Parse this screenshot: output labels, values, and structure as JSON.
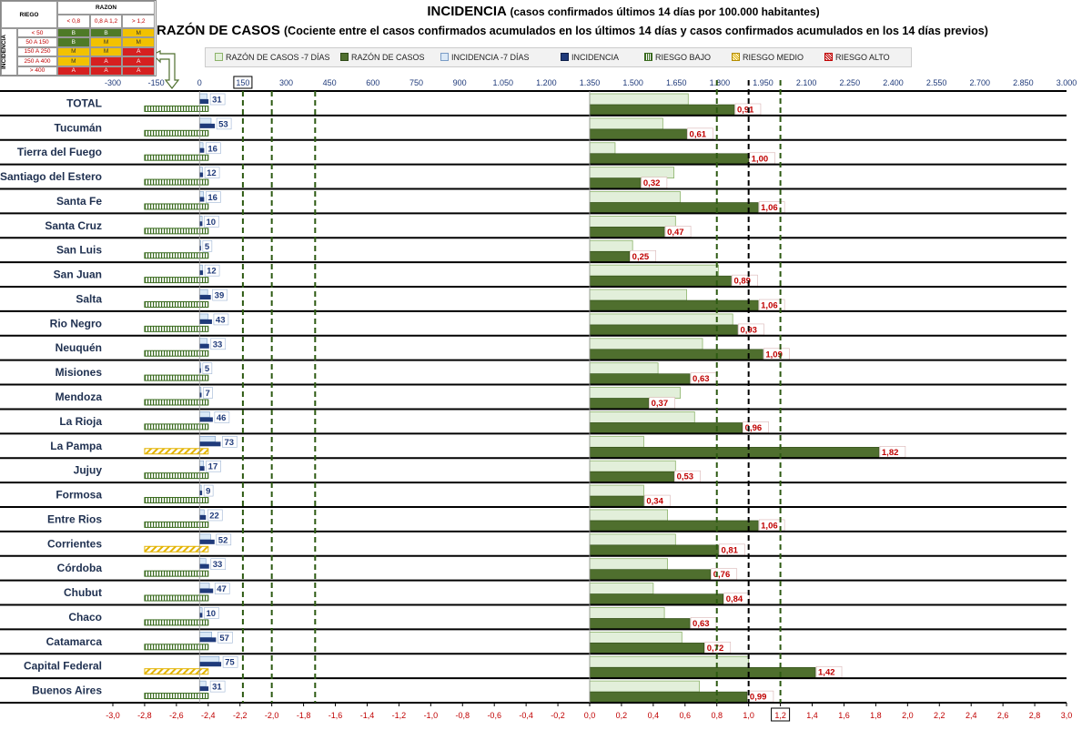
{
  "title": {
    "line1_main": "INCIDENCIA",
    "line1_sub": "(casos confirmados últimos 14 días por 100.000 habitantes)",
    "line2_main": "RAZÓN DE CASOS",
    "line2_sub": "(Cociente entre el casos confirmados acumulados en los últimos 14 días y casos confirmados acumulados en los 14 días previos)"
  },
  "risk_table": {
    "header_riesgo": "RIEGO",
    "header_razon": "RAZON",
    "side_label": "INCIDENCIA",
    "razon_cols": [
      "< 0,8",
      "0,8 A 1,2",
      "> 1,2"
    ],
    "rows": [
      {
        "label": "< 50",
        "cells": [
          "B",
          "B",
          "M"
        ]
      },
      {
        "label": "50 A 150",
        "cells": [
          "B",
          "M",
          "M"
        ]
      },
      {
        "label": "150 A 250",
        "cells": [
          "M",
          "M",
          "A"
        ]
      },
      {
        "label": "250 A 400",
        "cells": [
          "M",
          "A",
          "A"
        ]
      },
      {
        "label": "> 400",
        "cells": [
          "A",
          "A",
          "A"
        ]
      }
    ],
    "colors": {
      "B": "#4e7a27",
      "M": "#f2c200",
      "A": "#d62020"
    }
  },
  "legend": {
    "items": [
      "RAZÓN DE CASOS -7 DÍAS",
      "RAZÓN DE CASOS",
      "INCIDENCIA -7 DÍAS",
      "INCIDENCIA",
      "RIESGO BAJO",
      "RIESGO MEDIO",
      "RIESGO ALTO"
    ]
  },
  "colors": {
    "razon_prev": "#e2efda",
    "razon": "#4f6f2e",
    "incid_prev": "#dbe9f7",
    "incid": "#1f3a7a",
    "risk_low": "#3a6b1f",
    "risk_mid": "#e3b300",
    "risk_high": "#c00000",
    "label_red": "#c00000"
  },
  "chart_data": {
    "type": "bar",
    "orientation": "horizontal",
    "categories": [
      "TOTAL",
      "Tucumán",
      "Tierra del Fuego",
      "Santiago del Estero",
      "Santa Fe",
      "Santa Cruz",
      "San Luis",
      "San Juan",
      "Salta",
      "Rio Negro",
      "Neuquén",
      "Misiones",
      "Mendoza",
      "La Rioja",
      "La Pampa",
      "Jujuy",
      "Formosa",
      "Entre Rios",
      "Corrientes",
      "Córdoba",
      "Chubut",
      "Chaco",
      "Catamarca",
      "Capital Federal",
      "Buenos Aires"
    ],
    "series": [
      {
        "name": "RAZÓN DE CASOS -7 DÍAS",
        "values": [
          0.62,
          0.46,
          0.16,
          0.53,
          0.57,
          0.54,
          0.27,
          0.81,
          0.61,
          0.9,
          0.71,
          0.43,
          0.57,
          0.66,
          0.34,
          0.54,
          0.34,
          0.49,
          0.54,
          0.49,
          0.4,
          0.47,
          0.58,
          1.0,
          0.69
        ]
      },
      {
        "name": "RAZÓN DE CASOS",
        "values": [
          0.91,
          0.61,
          1.0,
          0.32,
          1.06,
          0.47,
          0.25,
          0.89,
          1.06,
          0.93,
          1.09,
          0.63,
          0.37,
          0.96,
          1.82,
          0.53,
          0.34,
          1.06,
          0.81,
          0.76,
          0.84,
          0.63,
          0.72,
          1.42,
          0.99
        ]
      },
      {
        "name": "INCIDENCIA -7 DÍAS",
        "values": [
          26,
          40,
          12,
          10,
          14,
          9,
          4,
          10,
          28,
          30,
          26,
          4,
          5,
          35,
          55,
          14,
          6,
          16,
          38,
          22,
          34,
          9,
          42,
          68,
          22
        ]
      },
      {
        "name": "INCIDENCIA",
        "values": [
          31,
          53,
          16,
          12,
          16,
          10,
          5,
          12,
          39,
          43,
          33,
          5,
          7,
          46,
          73,
          17,
          9,
          22,
          52,
          33,
          47,
          10,
          57,
          75,
          31
        ]
      },
      {
        "name": "RIESGO",
        "values": [
          "B",
          "B",
          "B",
          "B",
          "B",
          "B",
          "B",
          "B",
          "B",
          "B",
          "B",
          "B",
          "B",
          "B",
          "M",
          "B",
          "B",
          "B",
          "M",
          "B",
          "B",
          "B",
          "B",
          "M",
          "B"
        ]
      }
    ],
    "incidencia_labels": [
      "31",
      "53",
      "16",
      "12",
      "16",
      "10",
      "5",
      "12",
      "39",
      "43",
      "33",
      "5",
      "7",
      "46",
      "73",
      "17",
      "9",
      "22",
      "52",
      "33",
      "47",
      "10",
      "57",
      "75",
      "31"
    ],
    "razon_labels": [
      "0,91",
      "0,61",
      "1,00",
      "0,32",
      "1,06",
      "0,47",
      "0,25",
      "0,89",
      "1,06",
      "0,93",
      "1,09",
      "0,63",
      "0,37",
      "0,96",
      "1,82",
      "0,53",
      "0,34",
      "1,06",
      "0,81",
      "0,76",
      "0,84",
      "0,63",
      "0,72",
      "1,42",
      "0,99"
    ],
    "top_axis": {
      "label": "INCIDENCIA",
      "range": [
        -300,
        3000
      ],
      "ticks": [
        "-300",
        "-150",
        "0",
        "150",
        "300",
        "450",
        "600",
        "750",
        "900",
        "1.050",
        "1.200",
        "1.350",
        "1.500",
        "1.650",
        "1.800",
        "1.950",
        "2.100",
        "2.250",
        "2.400",
        "2.550",
        "2.700",
        "2.850",
        "3.000"
      ],
      "highlight": "150"
    },
    "bottom_axis": {
      "label": "RAZÓN DE CASOS",
      "range": [
        -3.0,
        3.0
      ],
      "ticks": [
        "-3,0",
        "-2,8",
        "-2,6",
        "-2,4",
        "-2,2",
        "-2,0",
        "-1,8",
        "-1,6",
        "-1,4",
        "-1,2",
        "-1,0",
        "-0,8",
        "-0,6",
        "-0,4",
        "-0,2",
        "0,0",
        "0,2",
        "0,4",
        "0,6",
        "0,8",
        "1,0",
        "1,2",
        "1,4",
        "1,6",
        "1,8",
        "2,0",
        "2,2",
        "2,4",
        "2,6",
        "2,8",
        "3,0"
      ],
      "highlight": "1,2"
    },
    "reference_lines": {
      "incidencia": [
        150,
        250,
        400
      ],
      "razon": [
        0.8,
        1.0,
        1.2
      ]
    },
    "legend_position": "top"
  }
}
